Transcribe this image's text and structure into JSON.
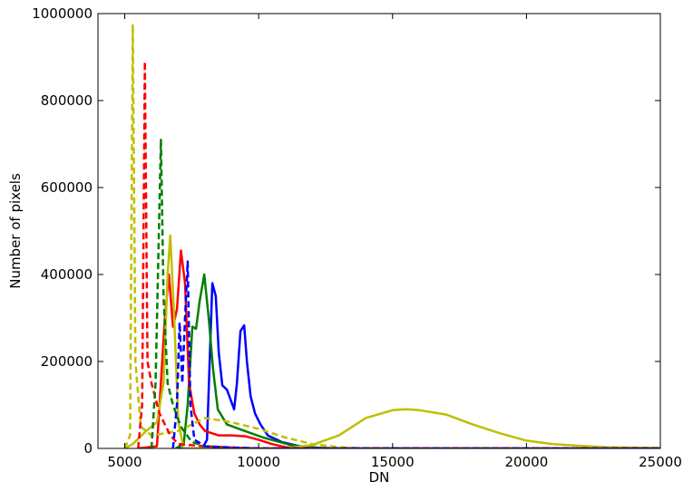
{
  "chart_data": {
    "type": "line",
    "x_label": "DN",
    "y_label": "Number of pixels",
    "xlim": [
      4000,
      25000
    ],
    "xticks": [
      5000,
      10000,
      15000,
      20000,
      25000
    ],
    "ylim": [
      0,
      1000000
    ],
    "yticks": [
      0,
      200000,
      400000,
      600000,
      800000,
      1000000
    ],
    "series": [
      {
        "color": "#0000ff",
        "linestyle": "solid",
        "x": [
          7000,
          7900,
          8070,
          8270,
          8400,
          8510,
          8645,
          8815,
          9085,
          9190,
          9320,
          9460,
          9560,
          9700,
          9865,
          10070,
          10340,
          10850,
          11530,
          12500,
          25000
        ],
        "values": [
          0,
          0,
          20000,
          380000,
          350000,
          220000,
          145000,
          135000,
          90000,
          150000,
          270000,
          283000,
          200000,
          120000,
          80000,
          55000,
          30000,
          15000,
          5000,
          0,
          0
        ]
      },
      {
        "color": "#008000",
        "linestyle": "solid",
        "x": [
          6900,
          7200,
          7350,
          7525,
          7660,
          7800,
          7970,
          8135,
          8300,
          8475,
          8815,
          9490,
          10170,
          11190,
          12000,
          13000,
          25000
        ],
        "values": [
          0,
          10000,
          100000,
          280000,
          275000,
          340000,
          400000,
          300000,
          180000,
          90000,
          55000,
          40000,
          25000,
          8000,
          2000,
          0,
          0
        ]
      },
      {
        "color": "#ff0000",
        "linestyle": "solid",
        "x": [
          5500,
          6200,
          6300,
          6500,
          6650,
          6800,
          6950,
          7100,
          7250,
          7400,
          7600,
          7800,
          8000,
          8500,
          9000,
          9500,
          10000,
          10500,
          11000,
          12000,
          25000
        ],
        "values": [
          0,
          5000,
          100000,
          300000,
          400000,
          280000,
          320000,
          455000,
          380000,
          150000,
          80000,
          55000,
          40000,
          30000,
          30000,
          28000,
          20000,
          10000,
          3000,
          0,
          0
        ]
      },
      {
        "color": "#bfbf00",
        "linestyle": "solid",
        "x": [
          5000,
          5300,
          5800,
          6200,
          6450,
          6600,
          6700,
          6850,
          7000,
          7200,
          11000,
          12000,
          13000,
          14000,
          15000,
          15500,
          16000,
          17000,
          18000,
          19000,
          20000,
          21000,
          22000,
          23000,
          25000
        ],
        "values": [
          0,
          10000,
          40000,
          60000,
          150000,
          400000,
          490000,
          300000,
          60000,
          0,
          0,
          8000,
          30000,
          70000,
          88000,
          90000,
          88000,
          78000,
          55000,
          35000,
          18000,
          10000,
          6000,
          3000,
          1000
        ]
      },
      {
        "color": "#bfbf00",
        "linestyle": "dashed",
        "x": [
          5000,
          5200,
          5300,
          5400,
          5600,
          6000,
          7000,
          8000,
          9000,
          10000,
          11000,
          12000,
          13000,
          14000,
          25000
        ],
        "values": [
          0,
          30000,
          975000,
          200000,
          50000,
          30000,
          40000,
          70000,
          60000,
          45000,
          25000,
          10000,
          3000,
          0,
          0
        ]
      },
      {
        "color": "#ff0000",
        "linestyle": "dashed",
        "x": [
          5500,
          5650,
          5750,
          5850,
          6000,
          6300,
          6700,
          7000,
          8000,
          9000,
          10000,
          25000
        ],
        "values": [
          0,
          100000,
          890000,
          200000,
          150000,
          80000,
          30000,
          10000,
          5000,
          2000,
          0,
          0
        ]
      },
      {
        "color": "#008000",
        "linestyle": "dashed",
        "x": [
          6000,
          6150,
          6350,
          6450,
          6600,
          6800,
          7100,
          7500,
          8000,
          9000,
          10000,
          25000
        ],
        "values": [
          0,
          150000,
          710000,
          350000,
          150000,
          100000,
          50000,
          15000,
          5000,
          1000,
          0,
          0
        ]
      },
      {
        "color": "#0000ff",
        "linestyle": "dashed",
        "x": [
          6800,
          6950,
          7050,
          7150,
          7250,
          7350,
          7450,
          7600,
          8000,
          9000,
          10000,
          25000
        ],
        "values": [
          0,
          100000,
          290000,
          150000,
          300000,
          430000,
          100000,
          20000,
          5000,
          2000,
          0,
          0
        ]
      }
    ]
  }
}
